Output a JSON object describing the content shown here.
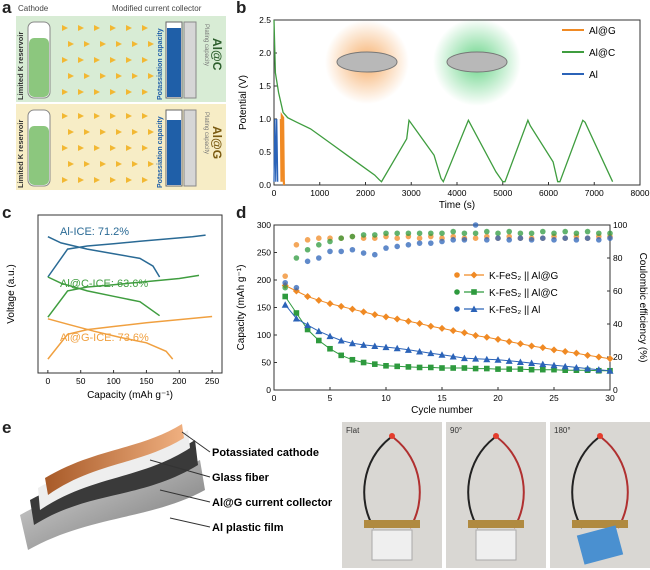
{
  "panels": {
    "a": "a",
    "b": "b",
    "c": "c",
    "d": "d",
    "e": "e"
  },
  "panel_a": {
    "header_left": "Cathode",
    "header_right": "Modified current collector",
    "reservoir_label": "Limited K reservoir",
    "potassiation_label": "Potassiation capacity",
    "plating_label": "Plating capacity",
    "row_top_label": "Al@C",
    "row_bottom_label": "Al@G",
    "colors": {
      "top_bg": "#d8ecd5",
      "bottom_bg": "#f7edc6",
      "cathode_green": "#8cc77e",
      "blue": "#1f5fa8",
      "arrow": "#f2b833"
    }
  },
  "chart_data": [
    {
      "panel": "b",
      "type": "line",
      "xlabel": "Time (s)",
      "ylabel": "Potential (V)",
      "xlim": [
        0,
        8000
      ],
      "ylim": [
        0,
        2.5
      ],
      "xticks": [
        0,
        1000,
        2000,
        3000,
        4000,
        5000,
        6000,
        7000,
        8000
      ],
      "yticks": [
        0.0,
        0.5,
        1.0,
        1.5,
        2.0,
        2.5
      ],
      "legend_position": "top-right",
      "series": [
        {
          "name": "Al@G",
          "color": "#f08a24",
          "x": [
            150,
            165,
            170,
            200,
            215,
            220
          ],
          "y": [
            1.0,
            0.05,
            1.05,
            1.02,
            0.05,
            0.0
          ]
        },
        {
          "name": "Al@C",
          "color": "#3f9d3f",
          "x": [
            0,
            30,
            100,
            200,
            300,
            500,
            800,
            1000,
            1300,
            1600,
            1900,
            2200,
            2300,
            2350,
            2900,
            2950,
            3500,
            3650,
            3700,
            4200,
            4250,
            4850,
            5000,
            5050,
            5550,
            5600,
            6100,
            6200,
            6250,
            6750,
            6800,
            7400
          ],
          "y": [
            2.5,
            1.7,
            1.4,
            1.1,
            1.02,
            0.95,
            0.85,
            0.75,
            0.6,
            0.45,
            0.3,
            0.15,
            0.08,
            0.05,
            0.7,
            0.98,
            0.45,
            0.1,
            0.05,
            0.9,
            0.98,
            0.2,
            0.05,
            0.05,
            0.98,
            0.9,
            0.35,
            0.05,
            0.05,
            0.98,
            0.95,
            0.05
          ]
        },
        {
          "name": "Al",
          "color": "#2b63b8",
          "x": [
            0,
            20,
            40,
            60,
            80
          ],
          "y": [
            0.05,
            1.0,
            0.05,
            1.0,
            0.05
          ]
        }
      ]
    },
    {
      "panel": "c",
      "type": "line",
      "xlabel": "Capacity (mAh g⁻¹)",
      "ylabel": "Voltage (a.u.)",
      "xlim": [
        -15,
        265
      ],
      "xticks": [
        0,
        50,
        100,
        150,
        200,
        250
      ],
      "annotations": [
        "Al-ICE: 71.2%",
        "Al@C-ICE: 63.6%",
        "Al@G-ICE: 73.6%"
      ],
      "series": [
        {
          "name": "Al",
          "color": "#2a6a95",
          "x": [
            0,
            30,
            60,
            100,
            140,
            180,
            220,
            240
          ],
          "y": [
            -1.0,
            0.8,
            1.0,
            1.15,
            1.3,
            1.45,
            1.6,
            1.7
          ],
          "offset": 3.2
        },
        {
          "name": "Al",
          "color": "#2a6a95",
          "x": [
            0,
            20,
            60,
            100,
            140,
            160,
            170
          ],
          "y": [
            1.6,
            1.2,
            0.8,
            0.5,
            0.2,
            -0.3,
            -1.0
          ],
          "offset": 3.2
        },
        {
          "name": "Al@C",
          "color": "#3f9d3f",
          "x": [
            0,
            30,
            60,
            100,
            150,
            200,
            230
          ],
          "y": [
            -1.0,
            0.7,
            0.95,
            1.1,
            1.3,
            1.5,
            1.7
          ],
          "offset": 0.6
        },
        {
          "name": "Al@C",
          "color": "#3f9d3f",
          "x": [
            0,
            20,
            60,
            100,
            140,
            170
          ],
          "y": [
            1.6,
            1.2,
            0.7,
            0.35,
            0.0,
            -0.9
          ],
          "offset": 0.6
        },
        {
          "name": "Al@G",
          "color": "#f0a040",
          "x": [
            0,
            30,
            60,
            100,
            150,
            200,
            250
          ],
          "y": [
            -1.0,
            0.6,
            0.9,
            1.1,
            1.35,
            1.55,
            1.75
          ],
          "offset": -2.1
        },
        {
          "name": "Al@G",
          "color": "#f0a040",
          "x": [
            0,
            30,
            70,
            110,
            150,
            180,
            190
          ],
          "y": [
            1.6,
            1.25,
            0.8,
            0.4,
            0.05,
            -0.5,
            -1.0
          ],
          "offset": -2.1
        }
      ]
    },
    {
      "panel": "d",
      "type": "scatter",
      "xlabel": "Cycle number",
      "ylabel": "Capacity (mAh g⁻¹)",
      "y2label": "Coulombic efficiency (%)",
      "xlim": [
        0,
        30
      ],
      "ylim": [
        0,
        300
      ],
      "y2lim": [
        0,
        100
      ],
      "xticks": [
        0,
        5,
        10,
        15,
        20,
        25,
        30
      ],
      "yticks": [
        0,
        50,
        100,
        150,
        200,
        250,
        300
      ],
      "y2ticks": [
        0,
        20,
        40,
        60,
        80,
        100
      ],
      "legend_position": "right",
      "series": [
        {
          "name": "K-FeS₂ || Al@G",
          "color": "#f08a24",
          "marker": "diamond",
          "x": [
            1,
            2,
            3,
            4,
            5,
            6,
            7,
            8,
            9,
            10,
            11,
            12,
            13,
            14,
            15,
            16,
            17,
            18,
            19,
            20,
            21,
            22,
            23,
            24,
            25,
            26,
            27,
            28,
            29,
            30
          ],
          "y": [
            190,
            180,
            170,
            163,
            157,
            152,
            147,
            142,
            137,
            133,
            129,
            125,
            121,
            116,
            112,
            108,
            104,
            99,
            96,
            92,
            88,
            84,
            80,
            77,
            73,
            70,
            67,
            63,
            60,
            57
          ],
          "ce_x": [
            1,
            2,
            3,
            4,
            5,
            6,
            7,
            8,
            9,
            10,
            11,
            12,
            13,
            14,
            15,
            16,
            17,
            18,
            19,
            20,
            21,
            22,
            23,
            24,
            25,
            26,
            27,
            28,
            29,
            30
          ],
          "ce_y": [
            69,
            88,
            91,
            92,
            92,
            92,
            93,
            92,
            92,
            93,
            92,
            93,
            92,
            93,
            92,
            93,
            92,
            92,
            93,
            92,
            93,
            92,
            92,
            92,
            93,
            92,
            93,
            92,
            93,
            93
          ]
        },
        {
          "name": "K-FeS₂ || Al@C",
          "color": "#2e9a3e",
          "marker": "square",
          "x": [
            1,
            2,
            3,
            4,
            5,
            6,
            7,
            8,
            9,
            10,
            11,
            12,
            13,
            14,
            15,
            16,
            17,
            18,
            19,
            20,
            21,
            22,
            23,
            24,
            25,
            26,
            27,
            28,
            29,
            30
          ],
          "y": [
            170,
            140,
            110,
            90,
            75,
            63,
            55,
            50,
            47,
            44,
            43,
            42,
            41,
            41,
            40,
            40,
            40,
            39,
            39,
            38,
            38,
            38,
            37,
            37,
            37,
            36,
            36,
            36,
            35,
            35
          ],
          "ce_x": [
            1,
            2,
            3,
            4,
            5,
            6,
            7,
            8,
            9,
            10,
            11,
            12,
            13,
            14,
            15,
            16,
            17,
            18,
            19,
            20,
            21,
            22,
            23,
            24,
            25,
            26,
            27,
            28,
            29,
            30
          ],
          "ce_y": [
            62,
            80,
            85,
            88,
            90,
            92,
            93,
            94,
            94,
            95,
            95,
            95,
            95,
            95,
            95,
            96,
            95,
            95,
            96,
            95,
            96,
            95,
            95,
            96,
            95,
            96,
            95,
            96,
            95,
            95
          ]
        },
        {
          "name": "K-FeS₂ || Al",
          "color": "#2b63b8",
          "marker": "triangle",
          "x": [
            1,
            2,
            3,
            4,
            5,
            6,
            7,
            8,
            9,
            10,
            11,
            12,
            13,
            14,
            15,
            16,
            17,
            18,
            19,
            20,
            21,
            22,
            23,
            24,
            25,
            26,
            27,
            28,
            29,
            30
          ],
          "y": [
            155,
            130,
            118,
            107,
            98,
            90,
            85,
            82,
            80,
            78,
            76,
            73,
            70,
            67,
            64,
            61,
            58,
            57,
            56,
            55,
            53,
            51,
            49,
            47,
            45,
            43,
            41,
            39,
            37,
            35
          ],
          "ce_x": [
            1,
            2,
            3,
            4,
            5,
            6,
            7,
            8,
            9,
            10,
            11,
            12,
            13,
            14,
            15,
            16,
            17,
            18,
            19,
            20,
            21,
            22,
            23,
            24,
            25,
            26,
            27,
            28,
            29,
            30
          ],
          "ce_y": [
            65,
            62,
            78,
            80,
            84,
            84,
            85,
            83,
            82,
            86,
            87,
            88,
            89,
            89,
            90,
            91,
            91,
            100,
            91,
            92,
            91,
            92,
            91,
            92,
            91,
            92,
            91,
            92,
            91,
            92
          ]
        }
      ]
    }
  ],
  "panel_e": {
    "labels": [
      "Potassiated cathode",
      "Glass fiber",
      "Al@G current collector",
      "Al plastic film"
    ],
    "photo_labels": [
      "Flat",
      "90°",
      "180°"
    ]
  }
}
